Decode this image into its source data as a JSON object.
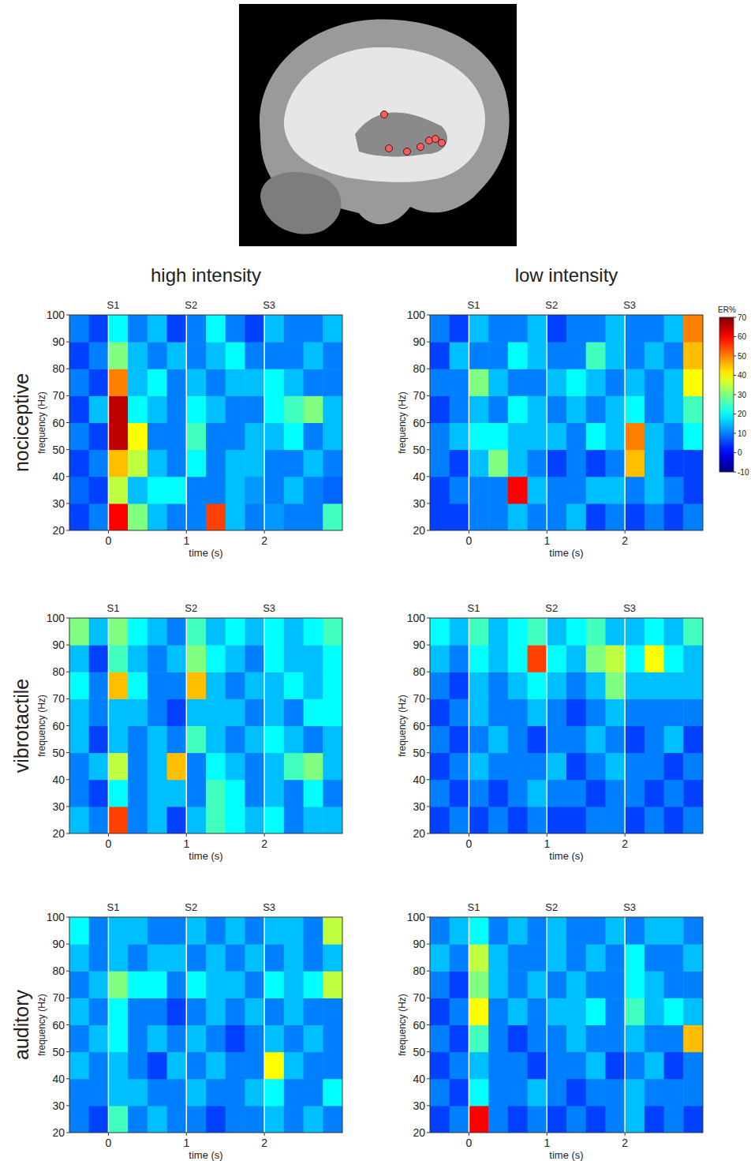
{
  "figure": {
    "column_titles": [
      "high intensity",
      "low intensity"
    ],
    "row_titles": [
      "nociceptive",
      "vibrotactile",
      "auditory"
    ],
    "colorbar": {
      "label": "ER%",
      "range": [
        -10,
        70
      ],
      "ticks": [
        70,
        60,
        50,
        40,
        30,
        20,
        10,
        0,
        -10
      ]
    }
  },
  "chart_data": [
    {
      "type": "heatmap",
      "xlabel": "time (s)",
      "ylabel": "frequency (Hz)",
      "xlim": [
        -0.5,
        3
      ],
      "ylim": [
        20,
        100
      ],
      "xticks": [
        0,
        1,
        2
      ],
      "yticks": [
        20,
        30,
        40,
        50,
        60,
        70,
        80,
        90,
        100
      ],
      "events": [
        {
          "time": 0,
          "label": "S1"
        },
        {
          "time": 1,
          "label": "S2"
        },
        {
          "time": 2,
          "label": "S3"
        }
      ],
      "x_bins": [
        -0.5,
        -0.25,
        0,
        0.25,
        0.5,
        0.75,
        1,
        1.25,
        1.5,
        1.75,
        2,
        2.25,
        2.5,
        2.75,
        3
      ],
      "y_bins": [
        20,
        30,
        40,
        50,
        60,
        70,
        80,
        90,
        100
      ],
      "cells": [
        [
          5,
          10,
          60,
          30,
          15,
          10,
          10,
          55,
          15,
          10,
          12,
          10,
          10,
          25
        ],
        [
          8,
          5,
          35,
          15,
          20,
          20,
          10,
          10,
          15,
          12,
          10,
          15,
          10,
          8
        ],
        [
          5,
          10,
          45,
          35,
          15,
          10,
          20,
          10,
          15,
          15,
          10,
          10,
          15,
          10
        ],
        [
          10,
          5,
          65,
          40,
          10,
          10,
          25,
          10,
          10,
          15,
          15,
          20,
          10,
          15
        ],
        [
          5,
          15,
          65,
          20,
          15,
          10,
          20,
          15,
          10,
          10,
          20,
          25,
          30,
          15
        ],
        [
          10,
          5,
          50,
          15,
          20,
          10,
          15,
          10,
          15,
          15,
          20,
          15,
          10,
          10
        ],
        [
          5,
          10,
          30,
          15,
          10,
          15,
          10,
          15,
          20,
          10,
          10,
          10,
          15,
          10
        ],
        [
          10,
          5,
          20,
          10,
          15,
          5,
          10,
          20,
          10,
          5,
          15,
          10,
          10,
          15
        ]
      ]
    },
    {
      "type": "heatmap",
      "xlabel": "time (s)",
      "ylabel": "frequency (Hz)",
      "xlim": [
        -0.5,
        3
      ],
      "ylim": [
        20,
        100
      ],
      "xticks": [
        0,
        1,
        2
      ],
      "yticks": [
        20,
        30,
        40,
        50,
        60,
        70,
        80,
        90,
        100
      ],
      "events": [
        {
          "time": 0,
          "label": "S1"
        },
        {
          "time": 1,
          "label": "S2"
        },
        {
          "time": 2,
          "label": "S3"
        }
      ],
      "x_bins": [
        -0.5,
        -0.25,
        0,
        0.25,
        0.5,
        0.75,
        1,
        1.25,
        1.5,
        1.75,
        2,
        2.25,
        2.5,
        2.75,
        3
      ],
      "y_bins": [
        20,
        30,
        40,
        50,
        60,
        70,
        80,
        90,
        100
      ],
      "cells": [
        [
          5,
          5,
          10,
          10,
          15,
          10,
          10,
          15,
          5,
          10,
          5,
          10,
          5,
          10
        ],
        [
          5,
          10,
          10,
          10,
          60,
          15,
          10,
          10,
          15,
          15,
          10,
          15,
          10,
          5
        ],
        [
          10,
          5,
          15,
          30,
          15,
          10,
          5,
          10,
          5,
          10,
          45,
          15,
          5,
          5
        ],
        [
          10,
          15,
          20,
          20,
          15,
          15,
          15,
          10,
          20,
          15,
          50,
          15,
          10,
          20
        ],
        [
          5,
          10,
          15,
          10,
          20,
          15,
          10,
          15,
          10,
          15,
          20,
          10,
          15,
          25
        ],
        [
          10,
          10,
          30,
          15,
          10,
          10,
          15,
          20,
          15,
          10,
          15,
          10,
          15,
          40
        ],
        [
          5,
          15,
          10,
          10,
          20,
          15,
          10,
          10,
          25,
          15,
          10,
          15,
          10,
          45
        ],
        [
          10,
          5,
          15,
          10,
          10,
          15,
          5,
          10,
          10,
          15,
          10,
          10,
          15,
          50
        ]
      ]
    },
    {
      "type": "heatmap",
      "xlabel": "time (s)",
      "ylabel": "frequency (Hz)",
      "xlim": [
        -0.5,
        3
      ],
      "ylim": [
        20,
        100
      ],
      "xticks": [
        0,
        1,
        2
      ],
      "yticks": [
        20,
        30,
        40,
        50,
        60,
        70,
        80,
        90,
        100
      ],
      "events": [
        {
          "time": 0,
          "label": "S1"
        },
        {
          "time": 1,
          "label": "S2"
        },
        {
          "time": 2,
          "label": "S3"
        }
      ],
      "x_bins": [
        -0.5,
        -0.25,
        0,
        0.25,
        0.5,
        0.75,
        1,
        1.25,
        1.5,
        1.75,
        2,
        2.25,
        2.5,
        2.75,
        3
      ],
      "y_bins": [
        20,
        30,
        40,
        50,
        60,
        70,
        80,
        90,
        100
      ],
      "cells": [
        [
          15,
          10,
          55,
          10,
          15,
          5,
          15,
          25,
          20,
          15,
          20,
          10,
          15,
          15
        ],
        [
          10,
          5,
          20,
          10,
          15,
          15,
          10,
          25,
          20,
          10,
          15,
          10,
          20,
          10
        ],
        [
          10,
          15,
          35,
          10,
          15,
          45,
          10,
          20,
          15,
          10,
          15,
          25,
          30,
          15
        ],
        [
          15,
          5,
          15,
          10,
          15,
          10,
          25,
          15,
          10,
          15,
          20,
          15,
          10,
          15
        ],
        [
          15,
          10,
          15,
          15,
          10,
          5,
          15,
          15,
          15,
          10,
          15,
          10,
          20,
          20
        ],
        [
          20,
          10,
          45,
          20,
          10,
          10,
          45,
          15,
          10,
          15,
          15,
          20,
          15,
          20
        ],
        [
          15,
          5,
          25,
          15,
          10,
          15,
          30,
          20,
          15,
          10,
          20,
          15,
          15,
          20
        ],
        [
          30,
          15,
          30,
          20,
          15,
          10,
          25,
          15,
          20,
          15,
          20,
          15,
          20,
          25
        ]
      ]
    },
    {
      "type": "heatmap",
      "xlabel": "time (s)",
      "ylabel": "frequency (Hz)",
      "xlim": [
        -0.5,
        3
      ],
      "ylim": [
        20,
        100
      ],
      "xticks": [
        0,
        1,
        2
      ],
      "yticks": [
        20,
        30,
        40,
        50,
        60,
        70,
        80,
        90,
        100
      ],
      "events": [
        {
          "time": 0,
          "label": "S1"
        },
        {
          "time": 1,
          "label": "S2"
        },
        {
          "time": 2,
          "label": "S3"
        }
      ],
      "x_bins": [
        -0.5,
        -0.25,
        0,
        0.25,
        0.5,
        0.75,
        1,
        1.25,
        1.5,
        1.75,
        2,
        2.25,
        2.5,
        2.75,
        3
      ],
      "y_bins": [
        20,
        30,
        40,
        50,
        60,
        70,
        80,
        90,
        100
      ],
      "cells": [
        [
          5,
          10,
          5,
          10,
          5,
          10,
          5,
          5,
          10,
          10,
          5,
          10,
          5,
          10
        ],
        [
          10,
          5,
          10,
          5,
          10,
          15,
          10,
          10,
          5,
          10,
          10,
          5,
          10,
          5
        ],
        [
          5,
          10,
          15,
          10,
          10,
          10,
          15,
          5,
          10,
          15,
          10,
          10,
          5,
          10
        ],
        [
          10,
          5,
          10,
          15,
          10,
          5,
          10,
          10,
          15,
          10,
          5,
          10,
          15,
          5
        ],
        [
          5,
          10,
          15,
          10,
          10,
          15,
          10,
          5,
          10,
          15,
          10,
          10,
          10,
          10
        ],
        [
          10,
          5,
          15,
          10,
          15,
          20,
          15,
          10,
          15,
          30,
          15,
          15,
          15,
          15
        ],
        [
          15,
          10,
          20,
          15,
          20,
          55,
          20,
          15,
          30,
          35,
          20,
          40,
          20,
          15
        ],
        [
          20,
          15,
          25,
          15,
          20,
          25,
          15,
          20,
          25,
          15,
          15,
          20,
          15,
          25
        ]
      ]
    },
    {
      "type": "heatmap",
      "xlabel": "time (s)",
      "ylabel": "frequency (Hz)",
      "xlim": [
        -0.5,
        3
      ],
      "ylim": [
        20,
        100
      ],
      "xticks": [
        0,
        1,
        2
      ],
      "yticks": [
        20,
        30,
        40,
        50,
        60,
        70,
        80,
        90,
        100
      ],
      "events": [
        {
          "time": 0,
          "label": "S1"
        },
        {
          "time": 1,
          "label": "S2"
        },
        {
          "time": 2,
          "label": "S3"
        }
      ],
      "x_bins": [
        -0.5,
        -0.25,
        0,
        0.25,
        0.5,
        0.75,
        1,
        1.25,
        1.5,
        1.75,
        2,
        2.25,
        2.5,
        2.75,
        3
      ],
      "y_bins": [
        20,
        30,
        40,
        50,
        60,
        70,
        80,
        90,
        100
      ],
      "cells": [
        [
          10,
          5,
          25,
          10,
          15,
          10,
          10,
          5,
          10,
          10,
          15,
          10,
          15,
          10
        ],
        [
          10,
          10,
          15,
          15,
          10,
          10,
          15,
          10,
          10,
          15,
          20,
          10,
          10,
          20
        ],
        [
          15,
          10,
          15,
          10,
          5,
          15,
          10,
          15,
          10,
          10,
          40,
          15,
          10,
          10
        ],
        [
          10,
          15,
          20,
          10,
          15,
          10,
          15,
          10,
          5,
          10,
          15,
          10,
          15,
          10
        ],
        [
          15,
          10,
          20,
          10,
          10,
          5,
          10,
          15,
          10,
          15,
          10,
          15,
          10,
          10
        ],
        [
          10,
          15,
          30,
          20,
          20,
          10,
          20,
          15,
          15,
          10,
          20,
          15,
          20,
          35
        ],
        [
          15,
          10,
          15,
          10,
          15,
          15,
          10,
          15,
          10,
          15,
          10,
          15,
          10,
          15
        ],
        [
          20,
          10,
          15,
          15,
          10,
          10,
          15,
          10,
          15,
          10,
          15,
          15,
          10,
          35
        ]
      ]
    },
    {
      "type": "heatmap",
      "xlabel": "time (s)",
      "ylabel": "frequency (Hz)",
      "xlim": [
        -0.5,
        3
      ],
      "ylim": [
        20,
        100
      ],
      "xticks": [
        0,
        1,
        2
      ],
      "yticks": [
        20,
        30,
        40,
        50,
        60,
        70,
        80,
        90,
        100
      ],
      "events": [
        {
          "time": 0,
          "label": "S1"
        },
        {
          "time": 1,
          "label": "S2"
        },
        {
          "time": 2,
          "label": "S3"
        }
      ],
      "x_bins": [
        -0.5,
        -0.25,
        0,
        0.25,
        0.5,
        0.75,
        1,
        1.25,
        1.5,
        1.75,
        2,
        2.25,
        2.5,
        2.75,
        3
      ],
      "y_bins": [
        20,
        30,
        40,
        50,
        60,
        70,
        80,
        90,
        100
      ],
      "cells": [
        [
          5,
          10,
          60,
          10,
          5,
          10,
          5,
          10,
          5,
          10,
          15,
          5,
          10,
          5
        ],
        [
          10,
          5,
          20,
          10,
          10,
          15,
          10,
          5,
          10,
          10,
          15,
          10,
          10,
          10
        ],
        [
          5,
          10,
          15,
          10,
          10,
          5,
          10,
          10,
          15,
          5,
          10,
          15,
          5,
          10
        ],
        [
          10,
          5,
          25,
          10,
          5,
          10,
          10,
          15,
          10,
          10,
          15,
          10,
          10,
          45
        ],
        [
          5,
          10,
          40,
          10,
          15,
          10,
          15,
          15,
          20,
          10,
          25,
          15,
          20,
          15
        ],
        [
          10,
          5,
          30,
          15,
          10,
          15,
          10,
          15,
          10,
          10,
          20,
          15,
          10,
          10
        ],
        [
          15,
          10,
          35,
          15,
          10,
          10,
          15,
          10,
          15,
          10,
          20,
          10,
          10,
          15
        ],
        [
          10,
          15,
          20,
          10,
          15,
          10,
          15,
          10,
          10,
          15,
          10,
          15,
          15,
          10
        ]
      ]
    }
  ]
}
